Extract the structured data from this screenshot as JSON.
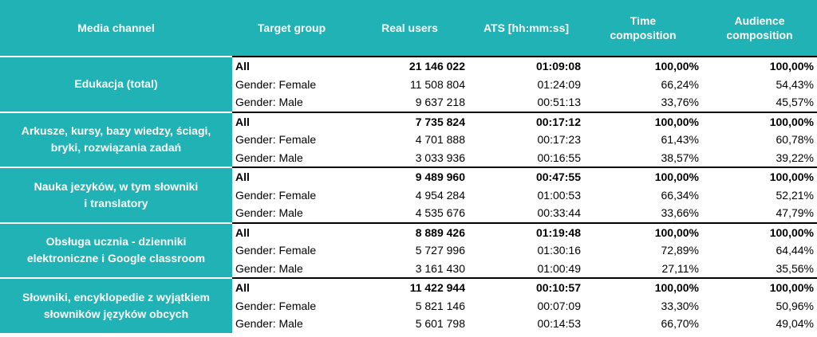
{
  "header": [
    [
      "Media channel"
    ],
    [
      "Target group"
    ],
    [
      "Real users"
    ],
    [
      "ATS [hh:mm:ss]"
    ],
    [
      "Time",
      "composition"
    ],
    [
      "Audience",
      "composition"
    ]
  ],
  "groups": [
    {
      "channel": [
        "Edukacja (total)"
      ],
      "rows": [
        [
          "All",
          "21 146 022",
          "01:09:08",
          "100,00%",
          "100,00%"
        ],
        [
          "Gender: Female",
          "11 508 804",
          "01:24:09",
          "66,24%",
          "54,43%"
        ],
        [
          "Gender: Male",
          "9 637 218",
          "00:51:13",
          "33,76%",
          "45,57%"
        ]
      ]
    },
    {
      "channel": [
        "Arkusze, kursy, bazy wiedzy, ściagi,",
        "bryki, rozwiązania zadań"
      ],
      "rows": [
        [
          "All",
          "7 735 824",
          "00:17:12",
          "100,00%",
          "100,00%"
        ],
        [
          "Gender: Female",
          "4 701 888",
          "00:17:23",
          "61,43%",
          "60,78%"
        ],
        [
          "Gender: Male",
          "3 033 936",
          "00:16:55",
          "38,57%",
          "39,22%"
        ]
      ]
    },
    {
      "channel": [
        "Nauka jezyków, w tym słowniki",
        "i translatory"
      ],
      "rows": [
        [
          "All",
          "9 489 960",
          "00:47:55",
          "100,00%",
          "100,00%"
        ],
        [
          "Gender: Female",
          "4 954 284",
          "01:00:53",
          "66,34%",
          "52,21%"
        ],
        [
          "Gender: Male",
          "4 535 676",
          "00:33:44",
          "33,66%",
          "47,79%"
        ]
      ]
    },
    {
      "channel": [
        "Obsługa ucznia - dzienniki",
        "elektroniczne i Google classroom"
      ],
      "rows": [
        [
          "All",
          "8 889 426",
          "01:19:48",
          "100,00%",
          "100,00%"
        ],
        [
          "Gender: Female",
          "5 727 996",
          "01:30:16",
          "72,89%",
          "64,44%"
        ],
        [
          "Gender: Male",
          "3 161 430",
          "01:00:49",
          "27,11%",
          "35,56%"
        ]
      ]
    },
    {
      "channel": [
        "Słowniki, encyklopedie z wyjątkiem",
        "słowników języków obcych"
      ],
      "rows": [
        [
          "All",
          "11 422 944",
          "00:10:57",
          "100,00%",
          "100,00%"
        ],
        [
          "Gender: Female",
          "5 821 146",
          "00:07:09",
          "33,30%",
          "50,96%"
        ],
        [
          "Gender: Male",
          "5 601 798",
          "00:14:53",
          "66,70%",
          "49,04%"
        ]
      ]
    }
  ]
}
